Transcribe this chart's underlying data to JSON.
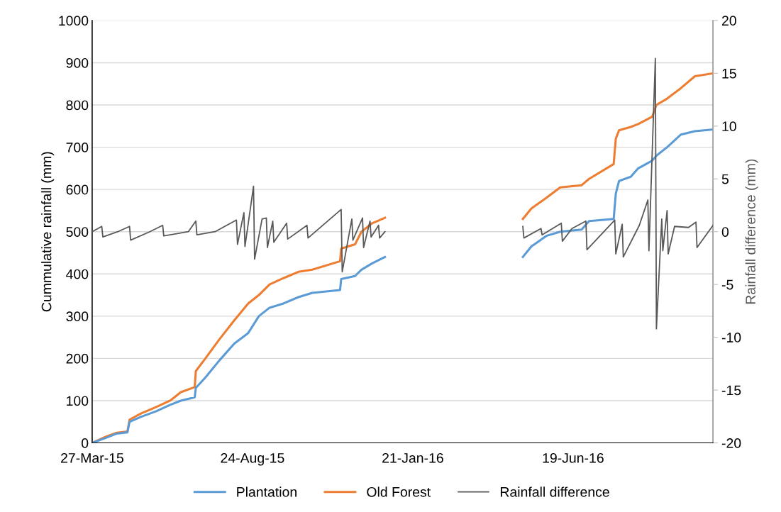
{
  "chart_data": {
    "type": "line",
    "xlim": [
      "2015-03-27",
      "2016-10-28"
    ],
    "xticks": [
      {
        "value": "2015-03-27",
        "label": "27-Mar-15"
      },
      {
        "value": "2015-08-24",
        "label": "24-Aug-15"
      },
      {
        "value": "2016-01-21",
        "label": "21-Jan-16"
      },
      {
        "value": "2016-06-19",
        "label": "19-Jun-16"
      }
    ],
    "ylim": [
      0,
      1000
    ],
    "yticks": [
      0,
      100,
      200,
      300,
      400,
      500,
      600,
      700,
      800,
      900,
      1000
    ],
    "y2lim": [
      -20,
      20
    ],
    "y2ticks": [
      -20,
      -15,
      -10,
      -5,
      0,
      5,
      10,
      15,
      20
    ],
    "ylabel": "Cummulative rainfall (mm)",
    "y2label": "Rainfall difference (mm)",
    "grid": "y",
    "legend": "bottom",
    "marker": "none",
    "line_style": "solid",
    "series": [
      {
        "name": "Plantation",
        "color": "#5b9bd5",
        "x": [
          "2015-03-27",
          "2015-04-09",
          "2015-04-19",
          "2015-04-29",
          "2015-05-01",
          "2015-05-12",
          "2015-05-26",
          "2015-06-08",
          "2015-06-18",
          "2015-07-01",
          "2015-07-02",
          "2015-07-11",
          "2015-07-24",
          "2015-08-07",
          "2015-08-20",
          "2015-08-30",
          "2015-09-09",
          "2015-09-22",
          "2015-10-06",
          "2015-10-19",
          "2015-11-14",
          "2015-11-15",
          "2015-11-28",
          "2015-12-04",
          "2015-12-14",
          "2015-12-26",
          "2016-02-15",
          "2016-05-03",
          "2016-05-11",
          "2016-05-25",
          "2016-06-07",
          "2016-06-27",
          "2016-07-04",
          "2016-07-27",
          "2016-07-29",
          "2016-08-01",
          "2016-08-12",
          "2016-08-19",
          "2016-09-01",
          "2016-09-05",
          "2016-09-15",
          "2016-09-28",
          "2016-10-11",
          "2016-10-28"
        ],
        "values": [
          0,
          12,
          22,
          25,
          50,
          62,
          75,
          90,
          100,
          108,
          130,
          155,
          195,
          235,
          260,
          300,
          320,
          330,
          345,
          355,
          362,
          388,
          395,
          410,
          425,
          440,
          null,
          440,
          465,
          490,
          500,
          505,
          525,
          530,
          590,
          620,
          630,
          650,
          668,
          680,
          700,
          730,
          738,
          742
        ]
      },
      {
        "name": "Old Forest",
        "color": "#ed7d31",
        "x": [
          "2015-03-27",
          "2015-04-09",
          "2015-04-19",
          "2015-04-29",
          "2015-05-01",
          "2015-05-12",
          "2015-05-26",
          "2015-06-08",
          "2015-06-18",
          "2015-07-01",
          "2015-07-02",
          "2015-07-11",
          "2015-07-24",
          "2015-08-07",
          "2015-08-20",
          "2015-08-30",
          "2015-09-09",
          "2015-09-22",
          "2015-10-06",
          "2015-10-19",
          "2015-11-14",
          "2015-11-15",
          "2015-11-28",
          "2015-12-04",
          "2015-12-14",
          "2015-12-26",
          "2016-02-15",
          "2016-05-03",
          "2016-05-11",
          "2016-05-25",
          "2016-06-07",
          "2016-06-27",
          "2016-07-04",
          "2016-07-27",
          "2016-07-29",
          "2016-08-01",
          "2016-08-12",
          "2016-08-19",
          "2016-09-01",
          "2016-09-05",
          "2016-09-15",
          "2016-09-28",
          "2016-10-11",
          "2016-10-28"
        ],
        "values": [
          0,
          15,
          24,
          27,
          55,
          70,
          85,
          100,
          120,
          132,
          170,
          200,
          245,
          290,
          330,
          350,
          375,
          390,
          405,
          410,
          430,
          460,
          470,
          500,
          520,
          533,
          null,
          530,
          555,
          580,
          605,
          610,
          625,
          660,
          720,
          740,
          748,
          755,
          772,
          800,
          815,
          840,
          868,
          875
        ]
      },
      {
        "name": "Rainfall difference",
        "color": "#595959",
        "axis": "y2",
        "x": [
          "2015-03-27",
          "2015-04-05",
          "2015-04-06",
          "2015-04-20",
          "2015-05-01",
          "2015-05-02",
          "2015-05-20",
          "2015-06-01",
          "2015-06-02",
          "2015-06-25",
          "2015-07-02",
          "2015-07-03",
          "2015-07-20",
          "2015-08-09",
          "2015-08-10",
          "2015-08-16",
          "2015-08-17",
          "2015-08-25",
          "2015-08-26",
          "2015-09-02",
          "2015-09-06",
          "2015-09-07",
          "2015-09-12",
          "2015-09-13",
          "2015-09-25",
          "2015-09-26",
          "2015-10-14",
          "2015-10-15",
          "2015-11-15",
          "2015-11-16",
          "2015-11-25",
          "2015-11-26",
          "2015-12-05",
          "2015-12-06",
          "2015-12-12",
          "2015-12-13",
          "2015-12-20",
          "2015-12-21",
          "2015-12-26",
          "2016-02-15",
          "2016-05-03",
          "2016-05-04",
          "2016-05-20",
          "2016-05-21",
          "2016-06-08",
          "2016-06-09",
          "2016-06-18",
          "2016-07-01",
          "2016-07-02",
          "2016-07-28",
          "2016-07-29",
          "2016-08-04",
          "2016-08-05",
          "2016-08-20",
          "2016-08-28",
          "2016-08-29",
          "2016-09-04",
          "2016-09-05",
          "2016-09-10",
          "2016-09-11",
          "2016-09-15",
          "2016-09-16",
          "2016-09-22",
          "2016-10-05",
          "2016-10-12",
          "2016-10-13",
          "2016-10-28"
        ],
        "values": [
          0,
          0.5,
          -0.5,
          0,
          0.5,
          -0.8,
          0,
          0.6,
          -0.4,
          0,
          1.0,
          -0.3,
          0,
          1.1,
          -1.2,
          1.8,
          -1.4,
          4.3,
          -2.6,
          1.2,
          1.3,
          -1.5,
          1.0,
          -1.0,
          0.8,
          -0.7,
          0.6,
          -0.6,
          2.1,
          -3.8,
          1.2,
          -0.8,
          1.3,
          -1.5,
          1.0,
          -0.5,
          0.6,
          -0.6,
          0,
          null,
          0.5,
          -0.6,
          0.3,
          -0.3,
          0.8,
          -0.9,
          0.3,
          1.0,
          -1.7,
          1.1,
          -2.1,
          0.7,
          -2.4,
          0.6,
          3.0,
          -1.8,
          16.4,
          -9.2,
          1.2,
          -1.8,
          2.0,
          -2.1,
          0.5,
          0.4,
          0.9,
          -1.5,
          0.6
        ]
      }
    ]
  }
}
